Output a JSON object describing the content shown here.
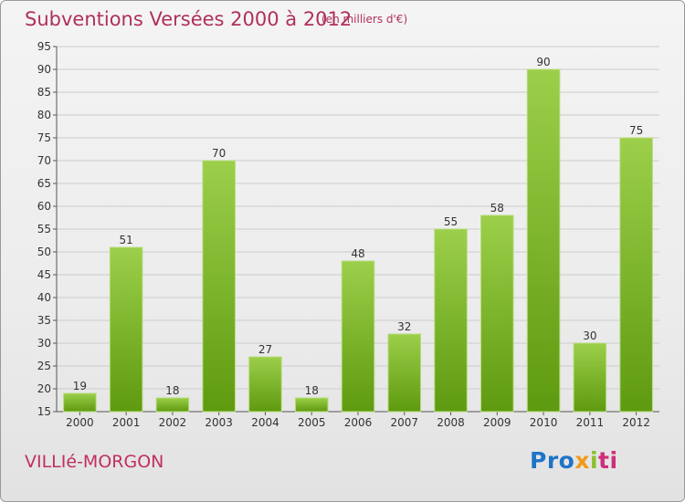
{
  "header": {
    "title": "Subventions Versées 2000 à 2012",
    "subtitle": "(en milliers d'€)"
  },
  "footer": {
    "place": "VILLIé-MORGON",
    "logo": "Proxiti",
    "logo_parts": [
      "Pro",
      "x",
      "i",
      "ti"
    ]
  },
  "colors": {
    "title": "#b0305a",
    "bar_top": "#9ccf4a",
    "bar_bottom": "#5e9a10",
    "grid": "#cccccc"
  },
  "chart_data": {
    "type": "bar",
    "title": "Subventions Versées 2000 à 2012",
    "subtitle": "(en milliers d'€)",
    "xlabel": "",
    "ylabel": "",
    "categories": [
      "2000",
      "2001",
      "2002",
      "2003",
      "2004",
      "2005",
      "2006",
      "2007",
      "2008",
      "2009",
      "2010",
      "2011",
      "2012"
    ],
    "values": [
      19,
      51,
      18,
      70,
      27,
      18,
      48,
      32,
      55,
      58,
      90,
      30,
      75
    ],
    "ylim": [
      15,
      95
    ],
    "yticks": [
      15,
      20,
      25,
      30,
      35,
      40,
      45,
      50,
      55,
      60,
      65,
      70,
      75,
      80,
      85,
      90,
      95
    ],
    "grid": true,
    "legend": "none",
    "data_labels": true
  }
}
